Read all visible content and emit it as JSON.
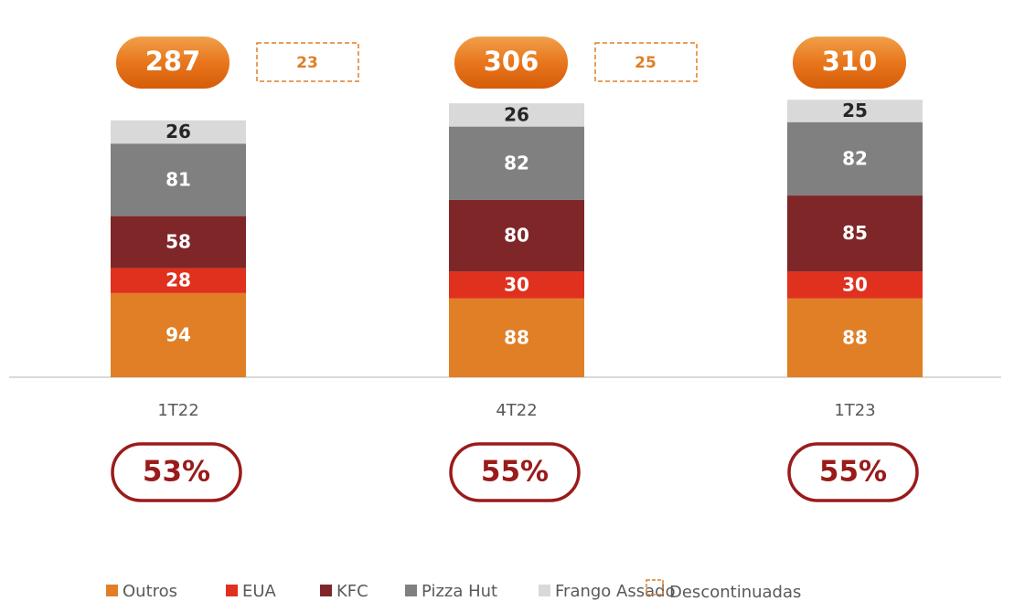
{
  "chart_data": {
    "type": "stacked_bar",
    "categories": [
      "1T22",
      "4T22",
      "1T23"
    ],
    "series": [
      {
        "name": "Outros",
        "color": "#e07f26",
        "values": [
          94,
          88,
          88
        ]
      },
      {
        "name": "EUA",
        "color": "#e0301e",
        "values": [
          28,
          30,
          30
        ]
      },
      {
        "name": "KFC",
        "color": "#7f2628",
        "values": [
          58,
          80,
          85
        ]
      },
      {
        "name": "Pizza Hut",
        "color": "#808080",
        "values": [
          81,
          82,
          82
        ]
      },
      {
        "name": "Frango Assado",
        "color": "#d9d9d9",
        "values": [
          26,
          26,
          25
        ]
      }
    ],
    "totals": {
      "values": [
        287,
        306,
        310
      ],
      "color": "#e06a12"
    },
    "discontinued": {
      "name": "Descontinuadas",
      "values": [
        23,
        25,
        null
      ],
      "color": "#e07f26"
    },
    "margins": {
      "values": [
        53,
        55,
        55
      ],
      "value_labels": [
        "53%",
        "55%",
        "55%"
      ],
      "color": "#9a1b1b"
    }
  }
}
